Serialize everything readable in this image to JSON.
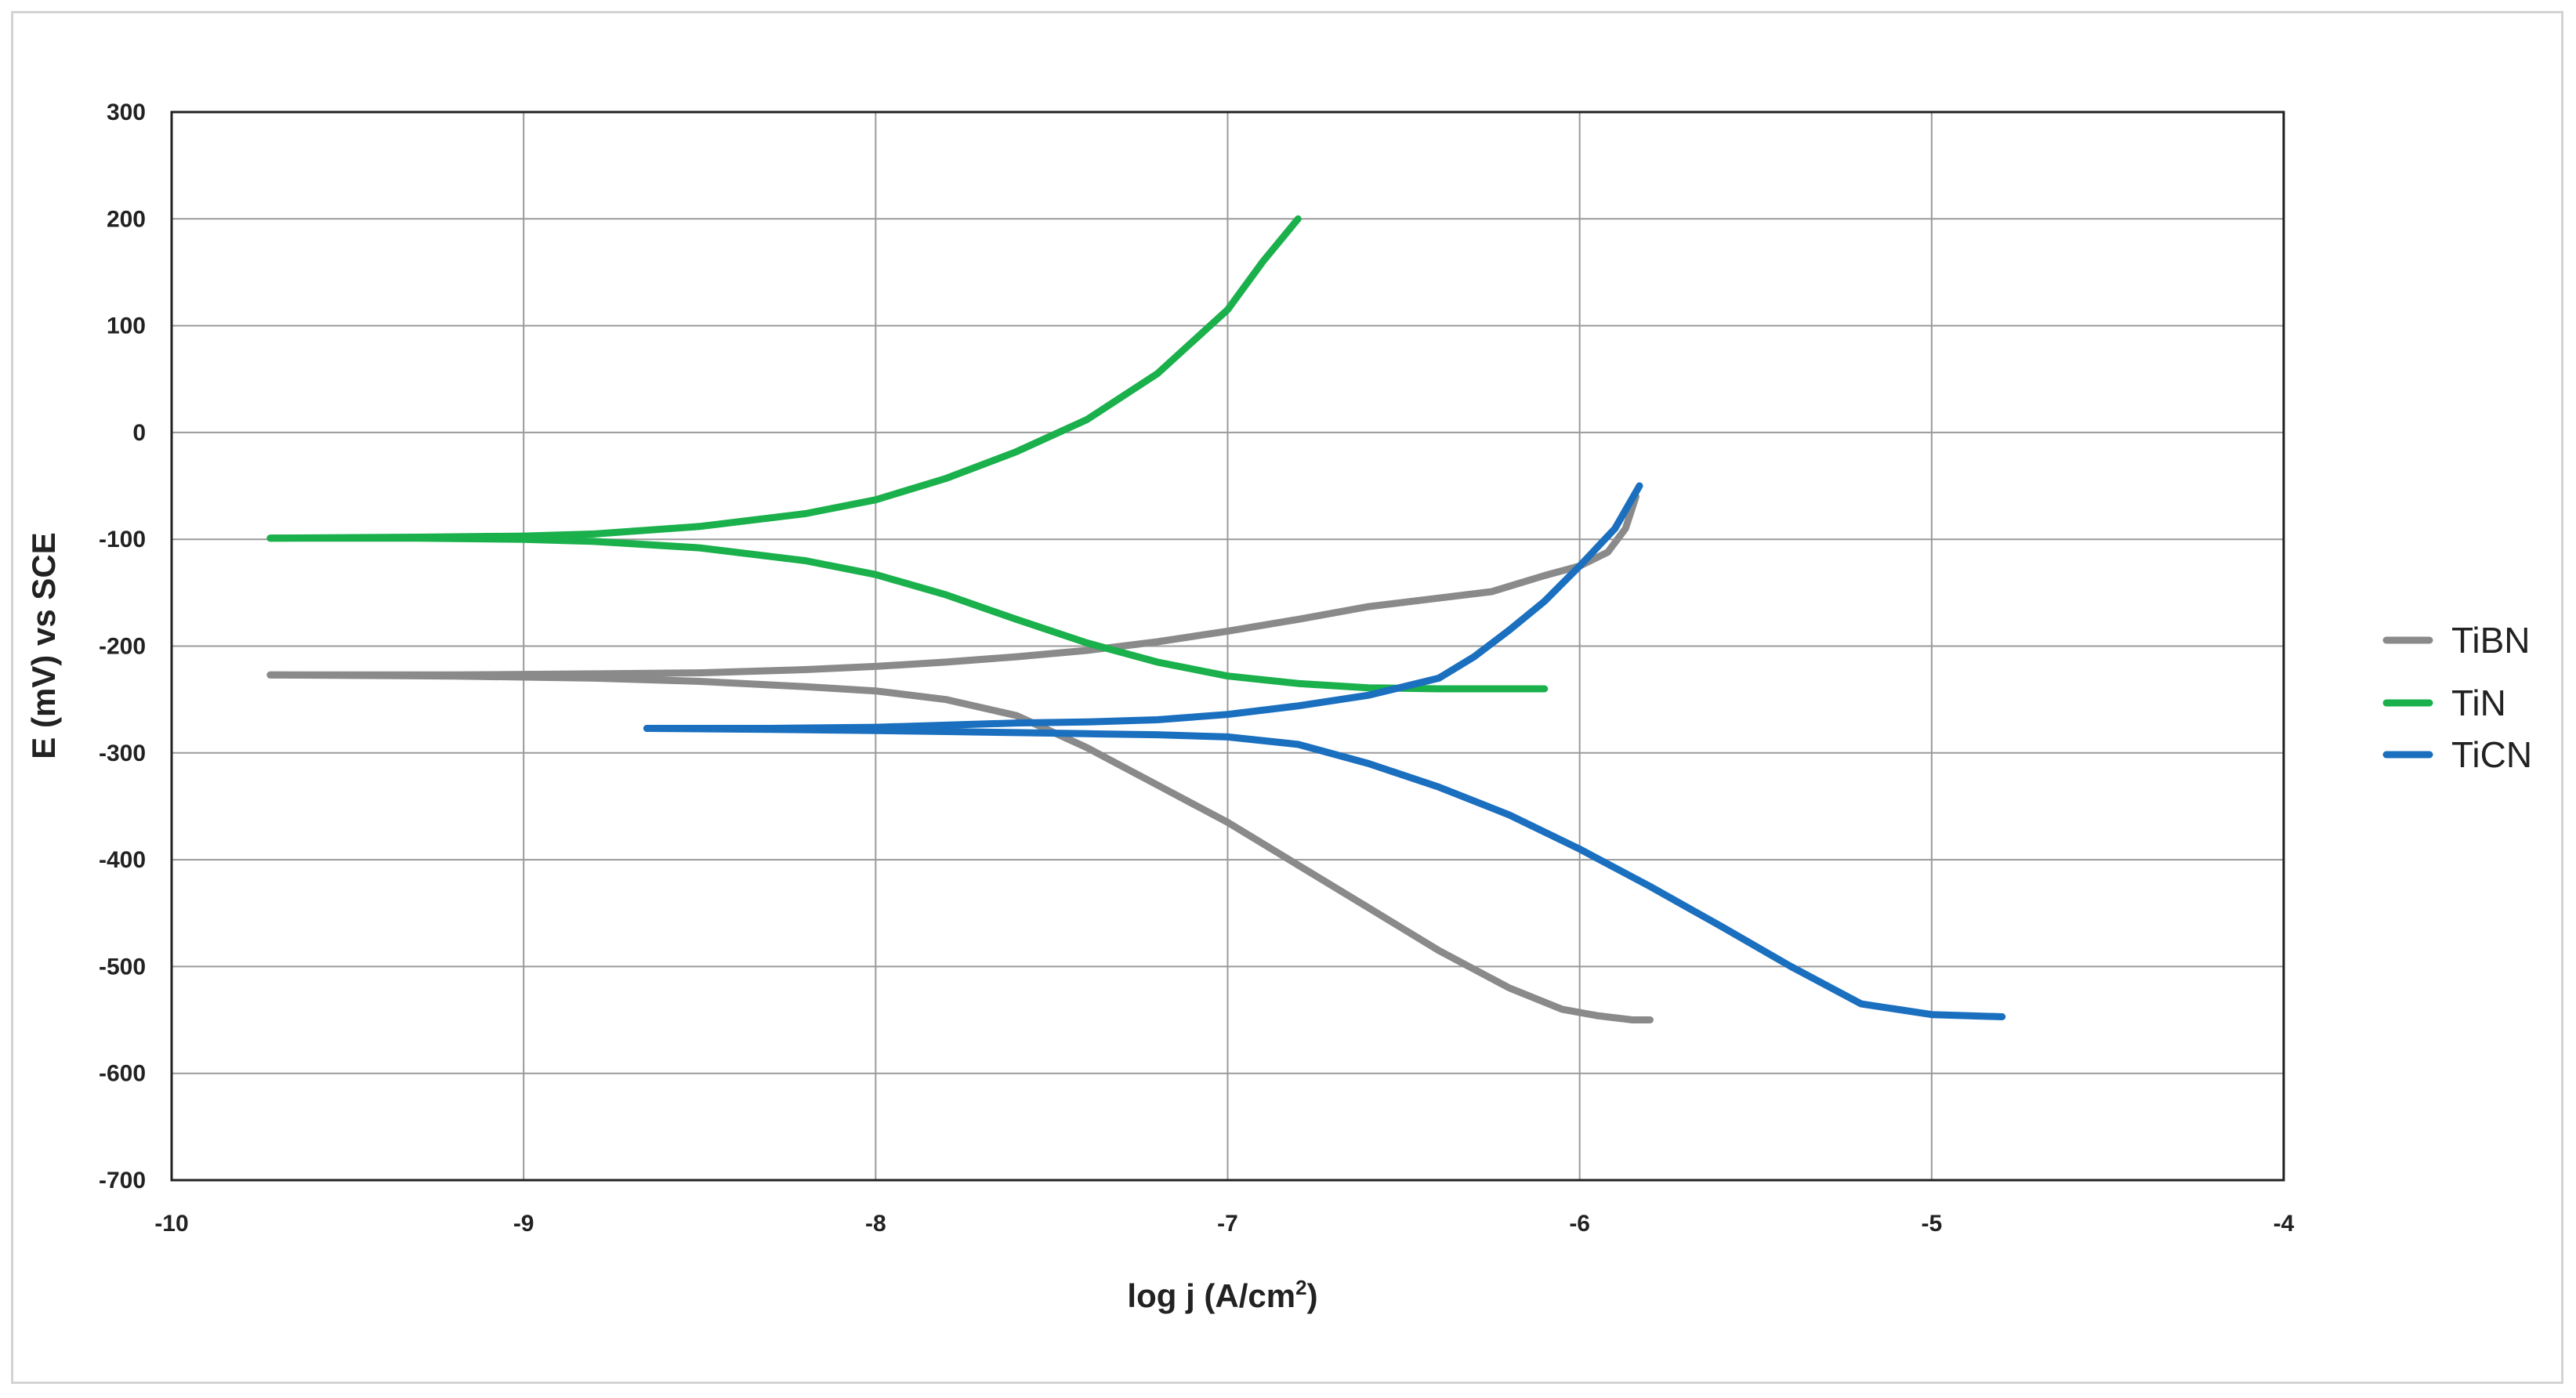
{
  "chart_data": {
    "type": "line",
    "title": "",
    "xlabel": "log j (A/cm",
    "xlabel_sup": "2",
    "xlabel_tail": ")",
    "ylabel": "E (mV) vs SCE",
    "xlim": [
      -10,
      -4
    ],
    "ylim": [
      -700,
      300
    ],
    "x_ticks": [
      -10,
      -9,
      -8,
      -7,
      -6,
      -5,
      -4
    ],
    "y_ticks": [
      300,
      200,
      100,
      0,
      -100,
      -200,
      -300,
      -400,
      -500,
      -600,
      -700
    ],
    "grid": true,
    "legend_position": "right",
    "series": [
      {
        "name": "TiBN",
        "color": "#8a8a8a",
        "branches": [
          {
            "x": [
              -9.72,
              -9.2,
              -8.8,
              -8.5,
              -8.2,
              -8.0,
              -7.8,
              -7.6,
              -7.4,
              -7.2,
              -7.0,
              -6.8,
              -6.6,
              -6.4,
              -6.25,
              -6.1,
              -6.0,
              -5.92,
              -5.87,
              -5.84
            ],
            "y": [
              -227,
              -227,
              -226,
              -225,
              -222,
              -219,
              -215,
              -210,
              -204,
              -196,
              -186,
              -175,
              -163,
              -155,
              -149,
              -134,
              -125,
              -112,
              -90,
              -60
            ]
          },
          {
            "x": [
              -9.72,
              -9.2,
              -8.8,
              -8.5,
              -8.2,
              -8.0,
              -7.8,
              -7.6,
              -7.4,
              -7.2,
              -7.0,
              -6.8,
              -6.6,
              -6.4,
              -6.2,
              -6.05,
              -5.95,
              -5.85,
              -5.8
            ],
            "y": [
              -227,
              -228,
              -230,
              -233,
              -238,
              -242,
              -250,
              -265,
              -295,
              -330,
              -365,
              -405,
              -445,
              -485,
              -520,
              -540,
              -546,
              -550,
              -550
            ]
          }
        ]
      },
      {
        "name": "TiN",
        "color": "#1ab04b",
        "branches": [
          {
            "x": [
              -9.72,
              -9.3,
              -9.0,
              -8.8,
              -8.5,
              -8.2,
              -8.0,
              -7.8,
              -7.6,
              -7.4,
              -7.2,
              -7.0,
              -6.9,
              -6.8
            ],
            "y": [
              -99,
              -98,
              -97,
              -95,
              -88,
              -76,
              -63,
              -43,
              -18,
              12,
              55,
              115,
              160,
              200
            ]
          },
          {
            "x": [
              -9.72,
              -9.3,
              -9.0,
              -8.8,
              -8.5,
              -8.2,
              -8.0,
              -7.8,
              -7.6,
              -7.4,
              -7.2,
              -7.0,
              -6.8,
              -6.6,
              -6.4,
              -6.2,
              -6.1
            ],
            "y": [
              -99,
              -99,
              -100,
              -102,
              -108,
              -120,
              -133,
              -152,
              -175,
              -197,
              -215,
              -228,
              -235,
              -239,
              -240,
              -240,
              -240
            ]
          }
        ]
      },
      {
        "name": "TiCN",
        "color": "#1a6fbf",
        "branches": [
          {
            "x": [
              -8.65,
              -8.3,
              -8.0,
              -7.8,
              -7.6,
              -7.4,
              -7.2,
              -7.0,
              -6.8,
              -6.6,
              -6.4,
              -6.3,
              -6.2,
              -6.1,
              -6.0,
              -5.9,
              -5.83
            ],
            "y": [
              -277,
              -277,
              -276,
              -274,
              -272,
              -271,
              -269,
              -264,
              -256,
              -246,
              -230,
              -210,
              -185,
              -158,
              -125,
              -90,
              -50
            ]
          },
          {
            "x": [
              -8.65,
              -8.3,
              -8.0,
              -7.8,
              -7.6,
              -7.4,
              -7.2,
              -7.0,
              -6.8,
              -6.6,
              -6.4,
              -6.2,
              -6.0,
              -5.8,
              -5.6,
              -5.4,
              -5.2,
              -5.0,
              -4.9,
              -4.8
            ],
            "y": [
              -277,
              -278,
              -279,
              -280,
              -281,
              -282,
              -283,
              -285,
              -292,
              -310,
              -332,
              -358,
              -390,
              -425,
              -462,
              -500,
              -535,
              -545,
              -546,
              -547
            ]
          }
        ]
      }
    ]
  }
}
